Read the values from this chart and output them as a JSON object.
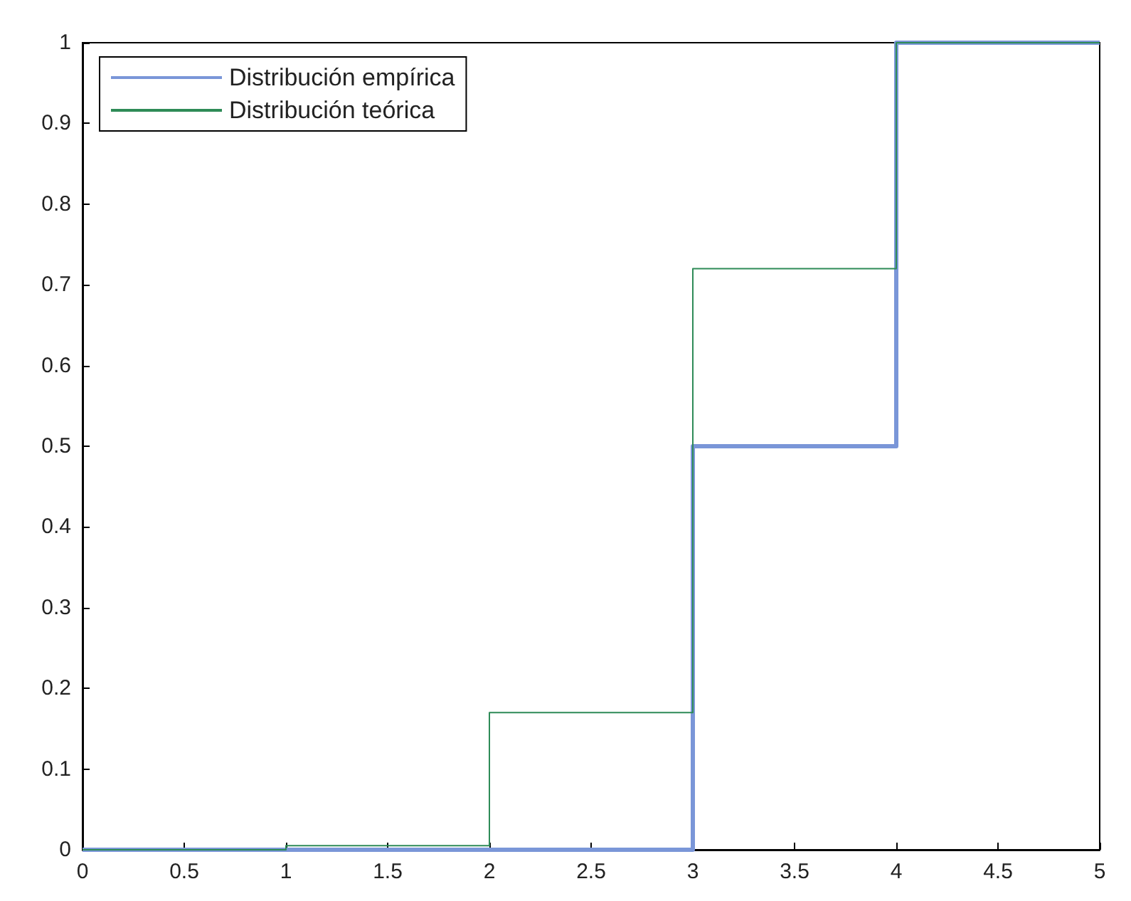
{
  "chart_data": {
    "type": "step",
    "x": [
      0,
      1,
      2,
      3,
      4,
      5
    ],
    "series": [
      {
        "name": "Distribución empírica",
        "color": "#7a96d8",
        "values": [
          0,
          0,
          0,
          0.5,
          1,
          1
        ]
      },
      {
        "name": "Distribución teórica",
        "color": "#2e8b57",
        "values": [
          0,
          0.005,
          0.17,
          0.72,
          1,
          1
        ]
      }
    ],
    "xlim": [
      0,
      5
    ],
    "xticks": [
      0,
      0.5,
      1,
      1.5,
      2,
      2.5,
      3,
      3.5,
      4,
      4.5,
      5
    ],
    "ylim": [
      0,
      1
    ],
    "yticks": [
      0,
      0.1,
      0.2,
      0.3,
      0.4,
      0.5,
      0.6,
      0.7,
      0.8,
      0.9,
      1
    ],
    "grid": false,
    "legend": "top left",
    "marker": "none",
    "line_style": "solid"
  }
}
